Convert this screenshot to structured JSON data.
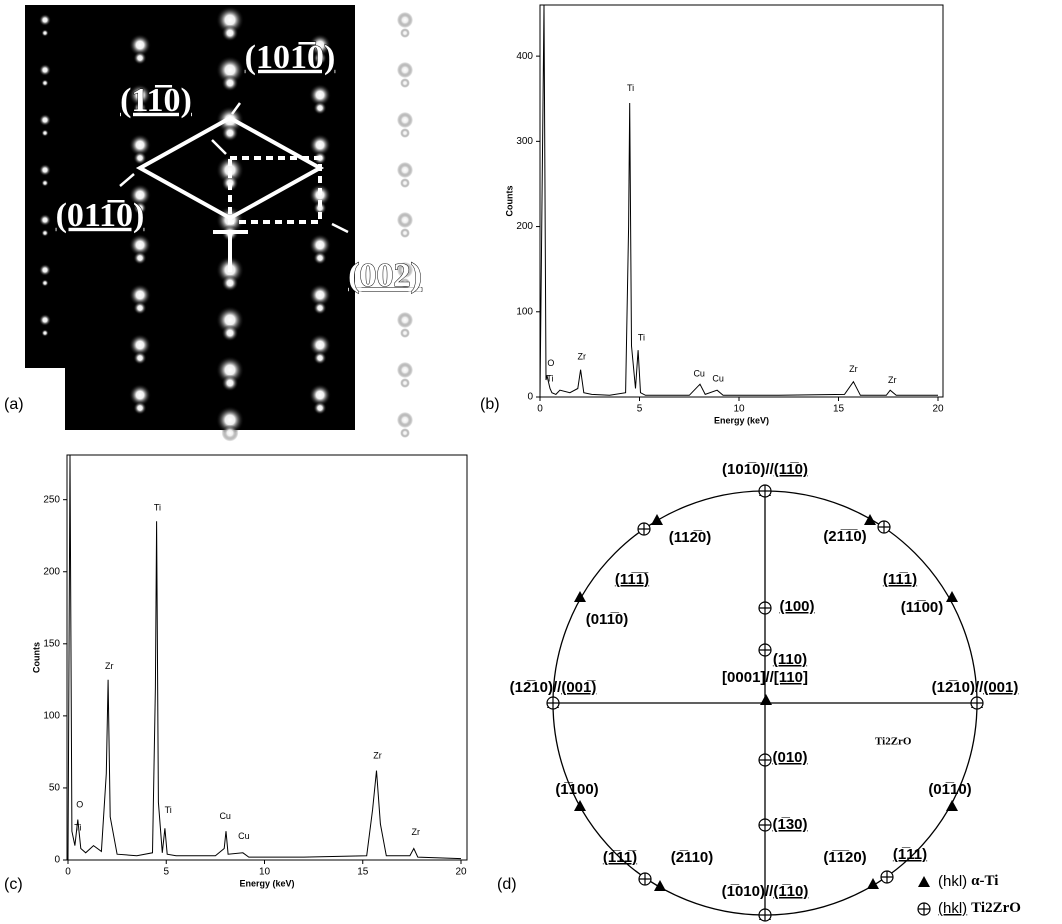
{
  "panel_a": {
    "panel_label": "(a)",
    "labels": [
      "(11̅0)",
      "(101̅0)",
      "(011̅0)",
      "(002)"
    ]
  },
  "chart_data": [
    {
      "type": "line",
      "panel_label": "(b)",
      "x_label": "Energy (keV)",
      "y_label": "Counts",
      "x": [
        0,
        0.2,
        0.3,
        0.35,
        0.45,
        0.5,
        0.6,
        0.8,
        1.0,
        1.5,
        1.9,
        2.04,
        2.2,
        2.6,
        3.5,
        4.3,
        4.45,
        4.51,
        4.6,
        4.8,
        4.93,
        5.05,
        5.3,
        6,
        7.5,
        8.04,
        8.3,
        8.9,
        9.2,
        12,
        15.3,
        15.75,
        16.1,
        17.4,
        17.6,
        17.9,
        20
      ],
      "values": [
        0,
        460,
        20,
        25,
        15,
        10,
        5,
        3,
        8,
        5,
        10,
        32,
        5,
        3,
        2,
        5,
        200,
        345,
        60,
        10,
        55,
        5,
        2,
        2,
        2,
        15,
        3,
        8,
        2,
        2,
        3,
        18,
        2,
        2,
        8,
        2,
        2
      ],
      "color": "#000000",
      "xlim": [
        0,
        20
      ],
      "xticks": [
        0,
        5,
        10,
        15,
        20
      ],
      "ylim": [
        0,
        460
      ],
      "yticks": [
        0,
        100,
        200,
        300,
        400
      ],
      "peak_labels": [
        "O",
        "Ti",
        "Zr",
        "Ti",
        "Ti",
        "Cu",
        "Cu",
        "Zr",
        "Zr"
      ]
    },
    {
      "type": "line",
      "panel_label": "(c)",
      "x_label": "Energy (keV)",
      "y_label": "Counts",
      "x": [
        0,
        0.1,
        0.2,
        0.35,
        0.5,
        0.65,
        0.9,
        1.3,
        1.7,
        1.95,
        2.04,
        2.15,
        2.5,
        3.5,
        4.3,
        4.45,
        4.51,
        4.6,
        4.8,
        4.93,
        5.05,
        5.5,
        7.5,
        7.95,
        8.04,
        8.15,
        8.9,
        9.2,
        12,
        15.2,
        15.5,
        15.7,
        15.9,
        16.2,
        17.4,
        17.6,
        17.8,
        20
      ],
      "values": [
        0,
        281,
        20,
        10,
        28,
        8,
        5,
        10,
        6,
        60,
        125,
        30,
        4,
        3,
        5,
        120,
        235,
        40,
        5,
        22,
        4,
        3,
        3,
        8,
        20,
        4,
        5,
        2,
        2,
        3,
        35,
        62,
        25,
        3,
        3,
        8,
        2,
        1
      ],
      "color": "#000000",
      "xlim": [
        0,
        20
      ],
      "xticks": [
        0,
        5,
        10,
        15,
        20
      ],
      "ylim": [
        0,
        281
      ],
      "yticks": [
        0,
        50,
        100,
        150,
        200,
        250
      ],
      "peak_labels": [
        "O",
        "Ti",
        "Zr",
        "Ti",
        "Ti",
        "Cu",
        "Cu",
        "Zr",
        "Zr"
      ]
    }
  ],
  "panel_d": {
    "panel_label": "(d)",
    "note": "Ti2ZrO",
    "labels": [
      {
        "parts": [
          {
            "text": "(101̅0)"
          },
          {
            "text": "//"
          },
          {
            "text": "(11̅0)",
            "underline": true
          }
        ]
      },
      {
        "parts": [
          {
            "text": "(112̅0)"
          }
        ]
      },
      {
        "parts": [
          {
            "text": "(21̅1̅0)"
          }
        ]
      },
      {
        "parts": [
          {
            "text": "(11̅1̅)",
            "underline": true
          }
        ]
      },
      {
        "parts": [
          {
            "text": "(11̅1)",
            "underline": true
          }
        ]
      },
      {
        "parts": [
          {
            "text": "(011̅0)"
          }
        ]
      },
      {
        "parts": [
          {
            "text": "(11̅00)"
          }
        ]
      },
      {
        "parts": [
          {
            "text": "(100)",
            "underline": true
          }
        ]
      },
      {
        "parts": [
          {
            "text": "(110)",
            "underline": true
          }
        ]
      },
      {
        "parts": [
          {
            "text": "[0001]"
          },
          {
            "text": "//"
          },
          {
            "text": "[110]",
            "underline": true
          }
        ]
      },
      {
        "parts": [
          {
            "text": "(12̅10)"
          },
          {
            "text": "//"
          },
          {
            "text": "(001̅)",
            "underline": true
          }
        ]
      },
      {
        "parts": [
          {
            "text": "(12̅10)"
          },
          {
            "text": "//"
          },
          {
            "text": "(001)",
            "underline": true
          }
        ]
      },
      {
        "parts": [
          {
            "text": "(010)",
            "underline": true
          }
        ]
      },
      {
        "parts": [
          {
            "text": "(1̅100)"
          }
        ]
      },
      {
        "parts": [
          {
            "text": "(01̅10)"
          }
        ]
      },
      {
        "parts": [
          {
            "text": "(1̅30)",
            "underline": true
          }
        ]
      },
      {
        "parts": [
          {
            "text": "(1̅11̅)",
            "underline": true
          }
        ]
      },
      {
        "parts": [
          {
            "text": "(2̅110)"
          }
        ]
      },
      {
        "parts": [
          {
            "text": "(1̅1̅20)"
          }
        ]
      },
      {
        "parts": [
          {
            "text": "(1̅11)",
            "underline": true
          }
        ]
      },
      {
        "parts": [
          {
            "text": "(1̅010)"
          },
          {
            "text": "//"
          },
          {
            "text": "(1̅10)",
            "underline": true
          }
        ]
      }
    ],
    "legend": [
      {
        "label": "(hkl)",
        "name": "α-Ti"
      },
      {
        "label": "(hkl)",
        "name": "Ti2ZrO",
        "underline": true
      }
    ]
  }
}
